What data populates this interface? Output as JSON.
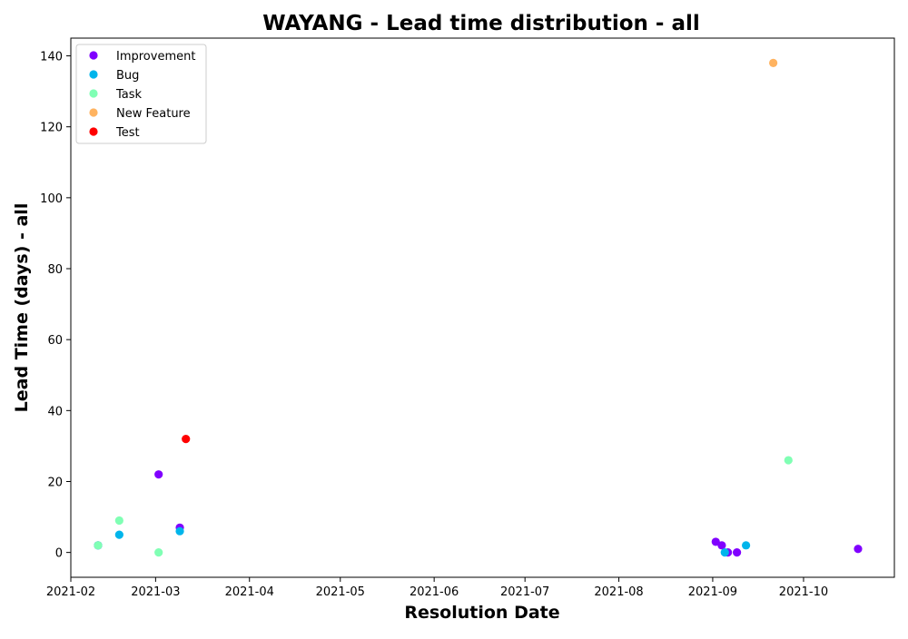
{
  "chart_data": {
    "type": "scatter",
    "title": "WAYANG - Lead time distribution - all",
    "xlabel": "Resolution Date",
    "ylabel": "Lead Time (days) - all",
    "x_type": "date",
    "xlim": [
      "2021-02-01",
      "2021-10-31"
    ],
    "ylim": [
      -7,
      145
    ],
    "x_ticks": [
      "2021-02",
      "2021-03",
      "2021-04",
      "2021-05",
      "2021-06",
      "2021-07",
      "2021-08",
      "2021-09",
      "2021-10"
    ],
    "x_tick_dates": [
      "2021-02-01",
      "2021-03-01",
      "2021-04-01",
      "2021-05-01",
      "2021-06-01",
      "2021-07-01",
      "2021-08-01",
      "2021-09-01",
      "2021-10-01"
    ],
    "y_ticks": [
      0,
      20,
      40,
      60,
      80,
      100,
      120,
      140
    ],
    "grid": false,
    "legend_position": "top-left",
    "series": [
      {
        "name": "Improvement",
        "color": "#8000ff",
        "points": [
          {
            "x": "2021-02-10",
            "y": 2
          },
          {
            "x": "2021-03-02",
            "y": 22
          },
          {
            "x": "2021-03-09",
            "y": 7
          },
          {
            "x": "2021-09-02",
            "y": 3
          },
          {
            "x": "2021-09-04",
            "y": 2
          },
          {
            "x": "2021-09-06",
            "y": 0
          },
          {
            "x": "2021-09-09",
            "y": 0
          },
          {
            "x": "2021-10-19",
            "y": 1
          }
        ]
      },
      {
        "name": "Bug",
        "color": "#00b5eb",
        "points": [
          {
            "x": "2021-02-10",
            "y": 2
          },
          {
            "x": "2021-02-17",
            "y": 5
          },
          {
            "x": "2021-03-09",
            "y": 6
          },
          {
            "x": "2021-09-05",
            "y": 0
          },
          {
            "x": "2021-09-12",
            "y": 2
          }
        ]
      },
      {
        "name": "Task",
        "color": "#80ffb4",
        "points": [
          {
            "x": "2021-02-10",
            "y": 2
          },
          {
            "x": "2021-02-17",
            "y": 9
          },
          {
            "x": "2021-03-02",
            "y": 0
          },
          {
            "x": "2021-09-26",
            "y": 26
          }
        ]
      },
      {
        "name": "New Feature",
        "color": "#ffb360",
        "points": [
          {
            "x": "2021-09-21",
            "y": 138
          }
        ]
      },
      {
        "name": "Test",
        "color": "#ff0000",
        "points": [
          {
            "x": "2021-03-11",
            "y": 32
          }
        ]
      }
    ]
  }
}
